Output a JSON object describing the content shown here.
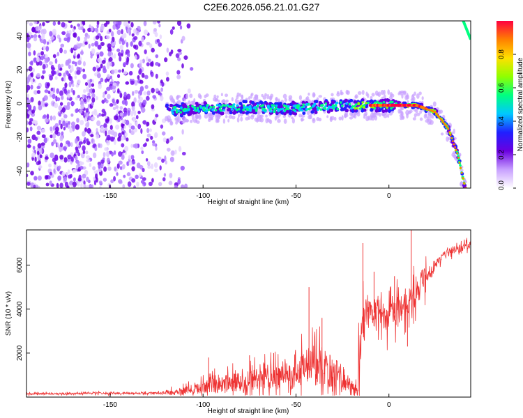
{
  "title": "C2E6.2026.056.21.01.G27",
  "chart_data": [
    {
      "type": "heatmap",
      "name": "spectrogram",
      "xlabel": "Height of straight line (km)",
      "ylabel": "Frequency (Hz)",
      "xlim": [
        -195,
        44
      ],
      "ylim": [
        -50,
        49
      ],
      "x_ticks": [
        -150,
        -100,
        -50,
        0
      ],
      "x_tick_labels": [
        "-150",
        "-100",
        "-50",
        "0"
      ],
      "y_ticks": [
        -40,
        -20,
        0,
        20,
        40
      ],
      "y_tick_labels": [
        "-40",
        "-20",
        "0",
        "20",
        "40"
      ],
      "colorbar": {
        "label": "Normalized spectral amplitude",
        "range": [
          0,
          1
        ],
        "ticks": [
          0.0,
          0.2,
          0.4,
          0.6,
          0.8
        ],
        "tick_labels": [
          "0.0",
          "0.2",
          "0.4",
          "0.6",
          "0.8"
        ],
        "colors": [
          "#ffffff",
          "#c8a0ff",
          "#6a00e0",
          "#2020ff",
          "#00c8ff",
          "#00ff80",
          "#90ff00",
          "#ffe000",
          "#ff8000",
          "#ff0040"
        ]
      },
      "noise_region_x": [
        -195,
        -110
      ],
      "signal_track": [
        {
          "x": -120,
          "y": -4
        },
        {
          "x": -100,
          "y": -3
        },
        {
          "x": -80,
          "y": -2
        },
        {
          "x": -60,
          "y": -3
        },
        {
          "x": -40,
          "y": -2
        },
        {
          "x": -20,
          "y": -1
        },
        {
          "x": 0,
          "y": -1
        },
        {
          "x": 15,
          "y": -1
        },
        {
          "x": 25,
          "y": -5
        },
        {
          "x": 32,
          "y": -15
        },
        {
          "x": 37,
          "y": -30
        },
        {
          "x": 41,
          "y": -50
        }
      ],
      "corner_track": [
        {
          "x": 40,
          "y": 49
        },
        {
          "x": 44,
          "y": 38
        }
      ]
    },
    {
      "type": "line",
      "name": "snr",
      "xlabel": "Height of straight line (km)",
      "ylabel": "SNR (10 * v/v)",
      "color": "#ee3333",
      "xlim": [
        -195,
        44
      ],
      "ylim": [
        0,
        7600
      ],
      "x_ticks": [
        -150,
        -100,
        -50,
        0
      ],
      "x_tick_labels": [
        "-150",
        "-100",
        "-50",
        "0"
      ],
      "y_ticks": [
        2000,
        4000,
        6000
      ],
      "y_tick_labels": [
        "2000",
        "4000",
        "6000"
      ],
      "series": [
        {
          "name": "SNR",
          "x": [
            -195,
            -160,
            -130,
            -118,
            -110,
            -100,
            -90,
            -80,
            -70,
            -60,
            -50,
            -45,
            -40,
            -35,
            -30,
            -25,
            -20,
            -17,
            -15,
            -12,
            -10,
            -5,
            0,
            5,
            10,
            15,
            20,
            25,
            30,
            35,
            40,
            44
          ],
          "values": [
            150,
            170,
            180,
            200,
            280,
            450,
            600,
            700,
            800,
            900,
            1000,
            1300,
            1500,
            1400,
            1100,
            900,
            500,
            300,
            2500,
            3700,
            3800,
            3900,
            3500,
            4000,
            4200,
            4800,
            5400,
            6000,
            6500,
            6700,
            6800,
            6900
          ]
        }
      ],
      "spikes": [
        {
          "x": -97,
          "y": 1800
        },
        {
          "x": -75,
          "y": 1900
        },
        {
          "x": -62,
          "y": 2000
        },
        {
          "x": -43,
          "y": 5000
        },
        {
          "x": -36,
          "y": 3600
        },
        {
          "x": -14,
          "y": 7000
        },
        {
          "x": -8,
          "y": 5700
        },
        {
          "x": 3,
          "y": 5500
        },
        {
          "x": 12,
          "y": 7600
        },
        {
          "x": 10,
          "y": 2300
        },
        {
          "x": 18,
          "y": 5800
        }
      ]
    }
  ]
}
